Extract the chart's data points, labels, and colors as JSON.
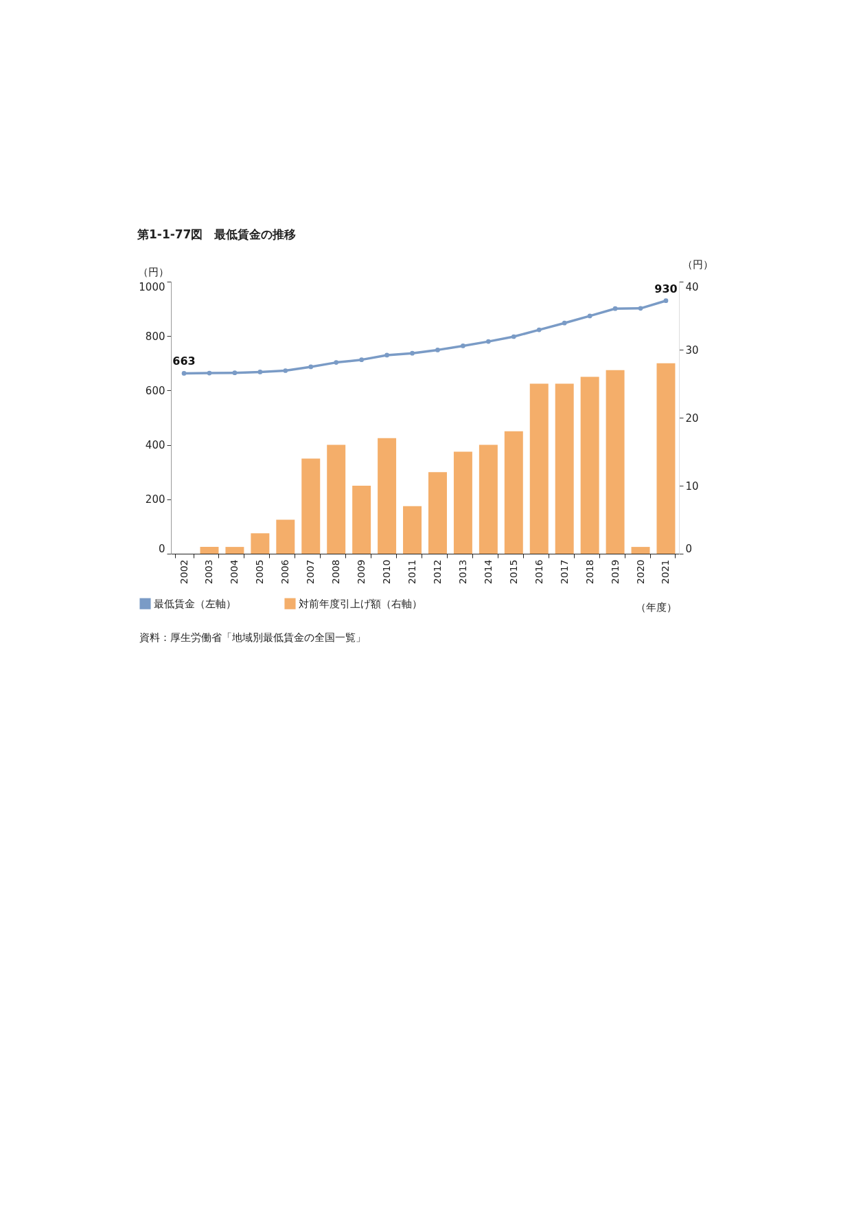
{
  "chart_data": {
    "type": "bar",
    "title": "第1-1-77図　最低賃金の推移",
    "xlabel": "（年度）",
    "ylabel": "（円）",
    "y2label": "（円）",
    "categories": [
      "2002",
      "2003",
      "2004",
      "2005",
      "2006",
      "2007",
      "2008",
      "2009",
      "2010",
      "2011",
      "2012",
      "2013",
      "2014",
      "2015",
      "2016",
      "2017",
      "2018",
      "2019",
      "2020",
      "2021"
    ],
    "series": [
      {
        "name": "最低賃金（左軸）",
        "type": "line",
        "color": "#7a9bc6",
        "values": [
          663,
          664,
          665,
          668,
          673,
          687,
          703,
          713,
          730,
          737,
          749,
          764,
          780,
          798,
          823,
          848,
          874,
          901,
          902,
          930
        ],
        "value_labels": [
          "663",
          null,
          null,
          null,
          null,
          null,
          null,
          null,
          null,
          null,
          null,
          null,
          null,
          null,
          null,
          null,
          null,
          null,
          null,
          "930"
        ]
      },
      {
        "name": "対前年度引上げ額（右軸）",
        "axis": "y2",
        "color": "#f4ae6a",
        "values": [
          0,
          1,
          1,
          3,
          5,
          14,
          16,
          10,
          17,
          7,
          12,
          15,
          16,
          18,
          25,
          25,
          26,
          27,
          1,
          28
        ]
      }
    ],
    "ylim": [
      0,
      1000
    ],
    "yticks": [
      0,
      200,
      400,
      600,
      800,
      1000
    ],
    "y2lim": [
      0,
      40
    ],
    "y2ticks": [
      0,
      10,
      20,
      30,
      40
    ],
    "marker": "circle",
    "line_style": "solid",
    "grid": false,
    "legend": "bottom",
    "annotations": [
      "資料：厚生労働省「地域別最低賃金の全国一覧」"
    ]
  }
}
